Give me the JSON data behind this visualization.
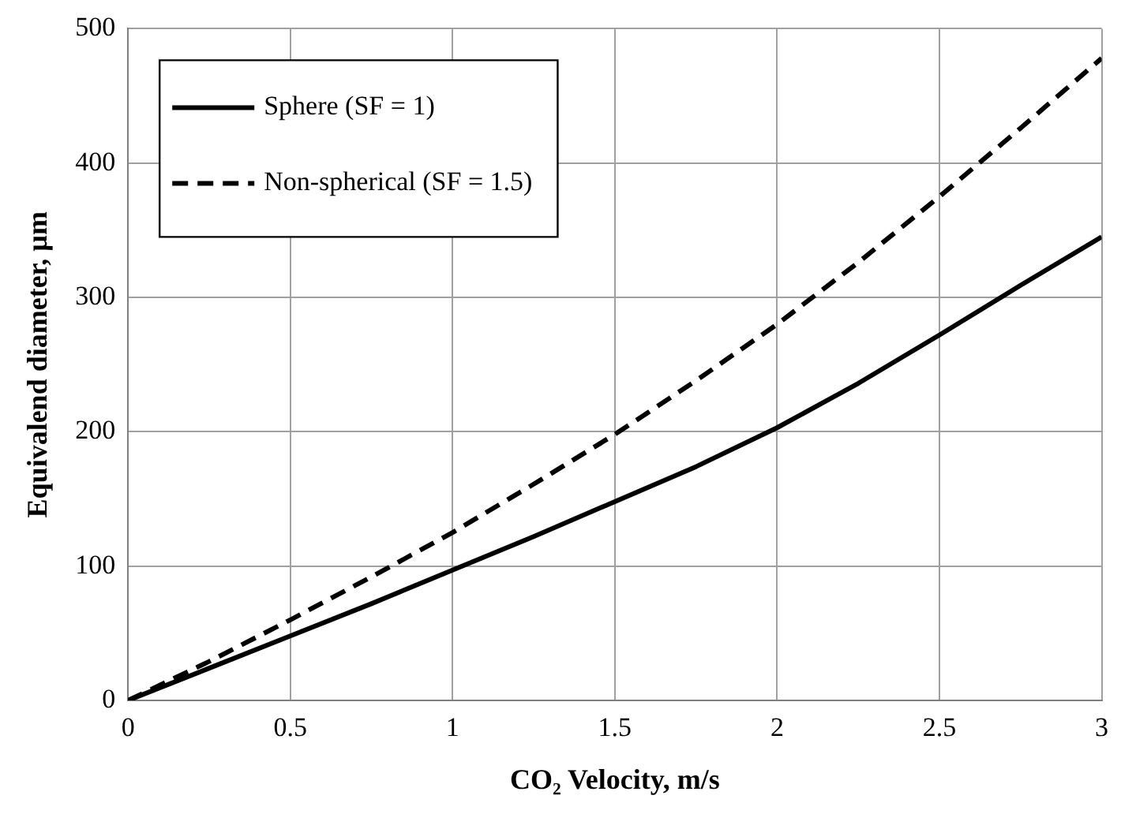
{
  "chart_data": {
    "type": "line",
    "xlabel": "CO₂ Velocity, m/s",
    "ylabel": "Equivalend diameter, µm",
    "x": [
      0,
      0.25,
      0.5,
      0.75,
      1,
      1.25,
      1.5,
      1.75,
      2,
      2.25,
      2.5,
      2.75,
      3
    ],
    "series": [
      {
        "name": "Sphere (SF = 1)",
        "color": "#000000",
        "line_style": "solid",
        "values": [
          0,
          24,
          48,
          72,
          97,
          122,
          148,
          174,
          203,
          236,
          272,
          309,
          345
        ]
      },
      {
        "name": "Non-spherical (SF = 1.5)",
        "color": "#000000",
        "line_style": "dashed",
        "values": [
          0,
          29,
          60,
          92,
          125,
          161,
          198,
          238,
          280,
          326,
          375,
          426,
          478
        ]
      }
    ],
    "xlim": [
      0,
      3
    ],
    "xticks": [
      0,
      0.5,
      1,
      1.5,
      2,
      2.5,
      3
    ],
    "ylim": [
      0,
      500
    ],
    "yticks": [
      0,
      100,
      200,
      300,
      400,
      500
    ],
    "grid": true,
    "legend": "top left",
    "marker": "none"
  }
}
